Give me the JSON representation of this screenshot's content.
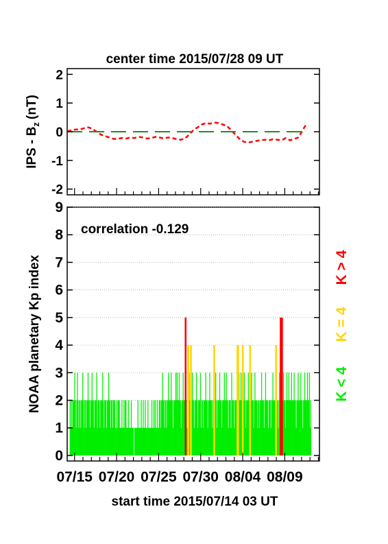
{
  "chart_data": [
    {
      "type": "line",
      "title": "center time 2015/07/28 09 UT",
      "ylabel_main": "IPS - B",
      "ylabel_sub": "z",
      "ylabel_unit": "(nT)",
      "ylim": [
        -2.2,
        2.2
      ],
      "yticks": [
        "-2",
        "-1",
        "0",
        "1",
        "2"
      ],
      "xlim": [
        0,
        30
      ],
      "grid": false,
      "series": [
        {
          "style": "dashed",
          "color": "#ff0000",
          "x": [
            0,
            0.5,
            1,
            1.5,
            2,
            2.5,
            3,
            3.5,
            4,
            4.5,
            5,
            5.5,
            6,
            6.5,
            7,
            7.5,
            8,
            8.5,
            9,
            9.5,
            10,
            10.5,
            11,
            11.5,
            12,
            12.5,
            13,
            13.5,
            14,
            14.5,
            15,
            15.5,
            16,
            16.5,
            17,
            17.5,
            18,
            18.5,
            19,
            19.5,
            20,
            20.5,
            21,
            21.5,
            22,
            22.5,
            23,
            23.5,
            24,
            24.5,
            25,
            25.5,
            26,
            26.5,
            27,
            27.5,
            28,
            28.5
          ],
          "y": [
            0.02,
            0.05,
            0.08,
            0.08,
            0.12,
            0.15,
            0.1,
            0.0,
            -0.1,
            -0.15,
            -0.2,
            -0.25,
            -0.25,
            -0.22,
            -0.24,
            -0.2,
            -0.22,
            -0.18,
            -0.2,
            -0.24,
            -0.22,
            -0.18,
            -0.2,
            -0.24,
            -0.2,
            -0.22,
            -0.26,
            -0.28,
            -0.24,
            -0.1,
            0.05,
            0.15,
            0.25,
            0.3,
            0.28,
            0.32,
            0.3,
            0.25,
            0.2,
            0.05,
            -0.1,
            -0.25,
            -0.35,
            -0.38,
            -0.35,
            -0.32,
            -0.3,
            -0.28,
            -0.3,
            -0.26,
            -0.28,
            -0.3,
            -0.22,
            -0.3,
            -0.25,
            -0.2,
            0.05,
            0.3
          ]
        },
        {
          "style": "long-dash",
          "color": "#228b22",
          "x": [
            0,
            28.6
          ],
          "y": [
            0,
            0
          ]
        }
      ]
    },
    {
      "type": "bar",
      "ylabel": "NOAA planetary Kp index",
      "ylim": [
        -0.2,
        9
      ],
      "yticks": [
        "0",
        "1",
        "2",
        "3",
        "4",
        "5",
        "6",
        "7",
        "8",
        "9"
      ],
      "xlim": [
        0,
        30
      ],
      "grid": true,
      "xtick_labels": [
        "07/15",
        "07/20",
        "07/25",
        "07/30",
        "08/04",
        "08/09"
      ],
      "xtick_values": [
        0.875,
        5.875,
        10.875,
        15.875,
        20.875,
        25.875
      ],
      "xlabel": "start time 2015/07/14 03 UT",
      "annotation": "correlation -0.129",
      "legend": [
        {
          "label": "K > 4",
          "color": "#ff0000"
        },
        {
          "label": "K = 4",
          "color": "#ffd700"
        },
        {
          "label": "K < 4",
          "color": "#00ee00"
        }
      ],
      "bar_width_days": 0.125,
      "x_start": 0.3,
      "x_end": 29.0,
      "values": [
        2,
        1,
        2,
        1,
        2,
        2,
        2,
        3,
        2,
        1,
        2,
        3,
        2,
        1,
        2,
        2,
        1,
        2,
        2,
        3,
        2,
        1,
        2,
        2,
        1,
        2,
        2,
        3,
        2,
        2,
        1,
        2,
        2,
        3,
        2,
        2,
        1,
        2,
        2,
        2,
        3,
        1,
        2,
        2,
        2,
        1,
        2,
        2,
        2,
        3,
        2,
        1,
        2,
        2,
        2,
        1,
        2,
        2,
        3,
        2,
        2,
        1,
        2,
        2,
        1,
        2,
        2,
        2,
        1,
        1,
        2,
        1,
        2,
        2,
        2,
        1,
        1,
        1,
        2,
        1,
        1,
        2,
        1,
        2,
        2,
        1,
        1,
        1,
        2,
        1,
        1,
        1,
        2,
        1,
        1,
        1,
        0,
        1,
        1,
        1,
        1,
        1,
        2,
        1,
        1,
        1,
        1,
        2,
        1,
        1,
        2,
        1,
        1,
        2,
        1,
        1,
        1,
        2,
        1,
        1,
        1,
        1,
        1,
        2,
        1,
        1,
        2,
        1,
        2,
        1,
        1,
        2,
        1,
        1,
        2,
        2,
        1,
        2,
        2,
        3,
        2,
        2,
        1,
        2,
        2,
        1,
        2,
        2,
        3,
        2,
        2,
        2,
        3,
        2,
        2,
        1,
        2,
        2,
        2,
        3,
        2,
        3,
        2,
        2,
        3,
        2,
        2,
        1,
        2,
        2,
        3,
        2,
        2,
        5,
        2,
        2,
        1,
        4,
        2,
        3,
        2,
        4,
        2,
        2,
        3,
        2,
        2,
        1,
        2,
        2,
        3,
        2,
        1,
        2,
        2,
        2,
        3,
        1,
        2,
        2,
        1,
        2,
        2,
        2,
        3,
        2,
        2,
        1,
        2,
        2,
        3,
        2,
        2,
        2,
        1,
        2,
        4,
        2,
        2,
        3,
        2,
        1,
        2,
        2,
        2,
        3,
        2,
        2,
        1,
        2,
        2,
        2,
        3,
        2,
        2,
        3,
        2,
        2,
        1,
        2,
        2,
        2,
        1,
        3,
        2,
        2,
        2,
        1,
        2,
        2,
        2,
        4,
        4,
        2,
        3,
        2,
        2,
        3,
        2,
        4,
        2,
        2,
        3,
        2,
        1,
        2,
        2,
        2,
        3,
        2,
        4,
        2,
        2,
        3,
        2,
        2,
        1,
        2,
        3,
        2,
        2,
        2,
        1,
        2,
        2,
        1,
        2,
        2,
        3,
        2,
        2,
        2,
        1,
        2,
        3,
        2,
        2,
        2,
        1,
        2,
        2,
        2,
        1,
        2,
        2,
        3,
        2,
        2,
        2,
        4,
        2,
        2,
        2,
        1,
        2,
        3,
        5,
        2,
        5,
        2,
        2,
        3,
        2,
        2,
        1,
        2,
        3,
        2,
        2,
        3,
        2,
        2,
        2,
        3,
        2,
        2,
        2,
        3,
        2,
        2,
        1,
        2,
        2,
        3,
        2,
        2,
        2,
        3,
        2,
        2,
        1,
        2,
        2,
        3,
        2,
        2,
        2,
        3,
        2,
        2,
        3,
        1,
        2
      ]
    }
  ]
}
